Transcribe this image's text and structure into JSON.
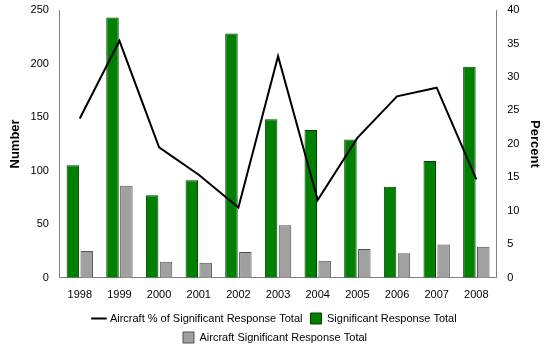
{
  "chart_data": {
    "type": "bar",
    "categories": [
      "1998",
      "1999",
      "2000",
      "2001",
      "2002",
      "2003",
      "2004",
      "2005",
      "2006",
      "2007",
      "2008"
    ],
    "series": [
      {
        "name": "Significant Response Total",
        "type": "bar",
        "color": "#008000",
        "values": [
          105,
          243,
          77,
          91,
          228,
          148,
          138,
          129,
          85,
          109,
          197
        ]
      },
      {
        "name": "Aircraft Significant Response Total",
        "type": "bar",
        "color": "#a0a0a0",
        "values": [
          25,
          86,
          15,
          14,
          24,
          49,
          16,
          27,
          23,
          31,
          29
        ]
      },
      {
        "name": "Aircraft % of Significant Response Total",
        "type": "line",
        "color": "#000000",
        "axis": "y2",
        "marker": "none",
        "values": [
          23.8,
          35.4,
          19.5,
          15.4,
          10.5,
          33.1,
          11.6,
          20.9,
          27.1,
          28.4,
          14.7
        ]
      }
    ],
    "y_label": "Number",
    "y2_label": "Percent",
    "ylim": [
      0,
      250
    ],
    "yticks": [
      0,
      50,
      100,
      150,
      200,
      250
    ],
    "y2lim": [
      0,
      40
    ],
    "y2ticks": [
      0,
      5,
      10,
      15,
      20,
      25,
      30,
      35,
      40
    ],
    "grid": false,
    "legend": "bottom"
  }
}
